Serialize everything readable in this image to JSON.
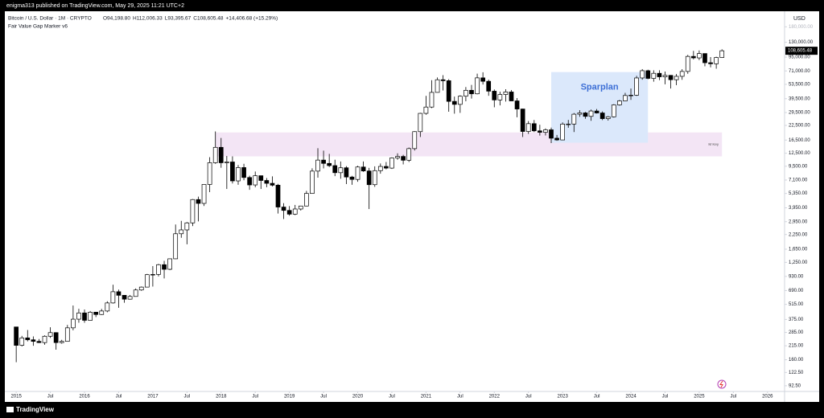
{
  "header": {
    "publisher": "enigma313 published on TradingView.com, May 29, 2025 11:21 UTC+2"
  },
  "footer": "TradingView",
  "chart_data": {
    "type": "candlestick",
    "symbol": "Bitcoin / U.S. Dollar · 1M · CRYPTO",
    "ohlc": [
      "O94,198.80",
      "H112,006.33",
      "L93,395.67",
      "C108,605.48",
      "+14,406.68 (+15.29%)"
    ],
    "indicator": "Fair Value Gap Marker v6",
    "y_axis_label": "USD",
    "log_scale": true,
    "grid": false,
    "up_color": "#ffffff",
    "down_color": "#000000",
    "x": [
      "2015-01",
      "2015-02",
      "2015-03",
      "2015-04",
      "2015-05",
      "2015-06",
      "2015-07",
      "2015-08",
      "2015-09",
      "2015-10",
      "2015-11",
      "2015-12",
      "2016-01",
      "2016-02",
      "2016-03",
      "2016-04",
      "2016-05",
      "2016-06",
      "2016-07",
      "2016-08",
      "2016-09",
      "2016-10",
      "2016-11",
      "2016-12",
      "2017-01",
      "2017-02",
      "2017-03",
      "2017-04",
      "2017-05",
      "2017-06",
      "2017-07",
      "2017-08",
      "2017-09",
      "2017-10",
      "2017-11",
      "2017-12",
      "2018-01",
      "2018-02",
      "2018-03",
      "2018-04",
      "2018-05",
      "2018-06",
      "2018-07",
      "2018-08",
      "2018-09",
      "2018-10",
      "2018-11",
      "2018-12",
      "2019-01",
      "2019-02",
      "2019-03",
      "2019-04",
      "2019-05",
      "2019-06",
      "2019-07",
      "2019-08",
      "2019-09",
      "2019-10",
      "2019-11",
      "2019-12",
      "2020-01",
      "2020-02",
      "2020-03",
      "2020-04",
      "2020-05",
      "2020-06",
      "2020-07",
      "2020-08",
      "2020-09",
      "2020-10",
      "2020-11",
      "2020-12",
      "2021-01",
      "2021-02",
      "2021-03",
      "2021-04",
      "2021-05",
      "2021-06",
      "2021-07",
      "2021-08",
      "2021-09",
      "2021-10",
      "2021-11",
      "2021-12",
      "2022-01",
      "2022-02",
      "2022-03",
      "2022-04",
      "2022-05",
      "2022-06",
      "2022-07",
      "2022-08",
      "2022-09",
      "2022-10",
      "2022-11",
      "2022-12",
      "2023-01",
      "2023-02",
      "2023-03",
      "2023-04",
      "2023-05",
      "2023-06",
      "2023-07",
      "2023-08",
      "2023-09",
      "2023-10",
      "2023-11",
      "2023-12",
      "2024-01",
      "2024-02",
      "2024-03",
      "2024-04",
      "2024-05",
      "2024-06",
      "2024-07",
      "2024-08",
      "2024-09",
      "2024-10",
      "2024-11",
      "2024-12",
      "2025-01",
      "2025-02",
      "2025-03",
      "2025-04",
      "2025-05"
    ],
    "open": [
      320,
      217,
      254,
      244,
      236,
      230,
      263,
      284,
      230,
      236,
      314,
      377,
      430,
      368,
      437,
      416,
      448,
      531,
      673,
      624,
      575,
      609,
      698,
      742,
      964,
      970,
      1190,
      1080,
      1348,
      2286,
      2480,
      2875,
      4703,
      4338,
      6468,
      10233,
      14156,
      10221,
      10397,
      6973,
      9240,
      7494,
      6404,
      7780,
      7037,
      6625,
      6371,
      4017,
      3742,
      3457,
      3854,
      4105,
      5350,
      8574,
      10817,
      10085,
      9630,
      8293,
      9199,
      7569,
      7193,
      9350,
      8599,
      6438,
      8658,
      9461,
      9137,
      11323,
      11681,
      10784,
      13781,
      19713,
      28990,
      33114,
      45137,
      58918,
      57750,
      37332,
      35041,
      41626,
      47167,
      43790,
      61318,
      57005,
      46306,
      38483,
      43194,
      45538,
      37714,
      31792,
      19785,
      23336,
      20050,
      19431,
      20495,
      17168,
      16548,
      23139,
      23147,
      28478,
      29268,
      27220,
      30477,
      29230,
      25941,
      26963,
      34668,
      37713,
      42265,
      42582,
      61198,
      71333,
      60637,
      67491,
      62678,
      64620,
      58970,
      63329,
      70215,
      96449,
      93430,
      102429,
      84374,
      82548,
      94198.8
    ],
    "high": [
      320,
      265,
      300,
      262,
      248,
      268,
      318,
      286,
      244,
      334,
      503,
      469,
      463,
      448,
      440,
      468,
      550,
      780,
      704,
      628,
      628,
      721,
      751,
      980,
      1155,
      1212,
      1290,
      1350,
      2780,
      3000,
      2930,
      4750,
      5000,
      6470,
      11500,
      19800,
      17250,
      11800,
      11700,
      9750,
      10000,
      7780,
      8500,
      7780,
      7410,
      7680,
      6550,
      4360,
      4100,
      4200,
      4130,
      5650,
      9100,
      13900,
      13200,
      12330,
      10900,
      10500,
      9530,
      7760,
      9580,
      10500,
      9180,
      9480,
      10070,
      10390,
      11450,
      12480,
      12090,
      14100,
      19900,
      29300,
      41950,
      58350,
      61800,
      64900,
      59600,
      41300,
      42400,
      50500,
      52900,
      67000,
      69000,
      59100,
      47990,
      45800,
      48200,
      47450,
      40000,
      31950,
      24650,
      25200,
      22800,
      21100,
      21480,
      18400,
      23950,
      25250,
      29200,
      31000,
      29850,
      31450,
      31800,
      30200,
      27450,
      35200,
      38450,
      44700,
      48950,
      64000,
      73800,
      72800,
      71950,
      71950,
      70000,
      65100,
      66500,
      73600,
      99600,
      108350,
      109350,
      102500,
      95000,
      95750,
      112006.33
    ],
    "low": [
      152,
      212,
      236,
      215,
      228,
      220,
      254,
      198,
      225,
      236,
      298,
      350,
      350,
      368,
      394,
      412,
      436,
      524,
      480,
      533,
      570,
      606,
      685,
      740,
      750,
      930,
      890,
      1060,
      1340,
      2100,
      1830,
      2690,
      2970,
      4110,
      5500,
      10000,
      9200,
      5880,
      6600,
      6430,
      7060,
      5780,
      6100,
      5880,
      6100,
      6200,
      3500,
      3120,
      3350,
      3390,
      3730,
      4080,
      5330,
      7470,
      9080,
      9330,
      7710,
      7300,
      6520,
      6430,
      6850,
      8450,
      3850,
      6150,
      8120,
      8900,
      8980,
      10900,
      9880,
      10390,
      13240,
      17600,
      28130,
      32400,
      45000,
      47000,
      30000,
      28800,
      29300,
      37400,
      39600,
      43300,
      53250,
      42000,
      32950,
      34300,
      37200,
      37700,
      26700,
      17600,
      18800,
      19550,
      18150,
      18200,
      15480,
      16270,
      16500,
      21400,
      19550,
      26950,
      25850,
      24800,
      28900,
      25150,
      24900,
      26550,
      34100,
      37600,
      38500,
      41900,
      59000,
      59600,
      56550,
      58450,
      53500,
      49000,
      52550,
      58850,
      66800,
      90500,
      89200,
      78200,
      76600,
      74400,
      93395.67
    ],
    "close": [
      217,
      254,
      244,
      236,
      230,
      263,
      284,
      230,
      236,
      314,
      377,
      430,
      368,
      437,
      416,
      448,
      531,
      673,
      624,
      575,
      609,
      698,
      742,
      964,
      970,
      1190,
      1080,
      1348,
      2286,
      2480,
      2875,
      4703,
      4338,
      6468,
      10233,
      14156,
      10221,
      10397,
      6973,
      9240,
      7494,
      6404,
      7780,
      7037,
      6625,
      6371,
      4017,
      3742,
      3457,
      3854,
      4105,
      5350,
      8574,
      10817,
      10085,
      9630,
      8293,
      9199,
      7569,
      7193,
      9350,
      8599,
      6438,
      8658,
      9461,
      9137,
      11323,
      11681,
      10784,
      13781,
      19713,
      28990,
      33114,
      45137,
      58918,
      57750,
      37332,
      35041,
      41626,
      47167,
      43790,
      61318,
      57005,
      46306,
      38483,
      43194,
      45538,
      37714,
      31792,
      19785,
      23336,
      20050,
      19431,
      20495,
      17168,
      16548,
      23139,
      23147,
      28478,
      29268,
      27220,
      30477,
      29230,
      25941,
      26963,
      34668,
      37713,
      42265,
      42582,
      61198,
      71333,
      60637,
      67491,
      62678,
      64620,
      58970,
      63329,
      70215,
      96449,
      93430,
      102429,
      84374,
      82548,
      94198.8,
      108605.48
    ],
    "last_label": "108,605.48",
    "xlim": [
      "2014-11",
      "2026-04"
    ],
    "xticks": [
      {
        "value": "2015-01",
        "label": "2015"
      },
      {
        "value": "2015-07",
        "label": "Jul"
      },
      {
        "value": "2016-01",
        "label": "2016"
      },
      {
        "value": "2016-07",
        "label": "Jul"
      },
      {
        "value": "2017-01",
        "label": "2017"
      },
      {
        "value": "2017-07",
        "label": "Jul"
      },
      {
        "value": "2018-01",
        "label": "2018"
      },
      {
        "value": "2018-07",
        "label": "Jul"
      },
      {
        "value": "2019-01",
        "label": "2019"
      },
      {
        "value": "2019-07",
        "label": "Jul"
      },
      {
        "value": "2020-01",
        "label": "2020"
      },
      {
        "value": "2020-07",
        "label": "Jul"
      },
      {
        "value": "2021-01",
        "label": "2021"
      },
      {
        "value": "2021-07",
        "label": "Jul"
      },
      {
        "value": "2022-01",
        "label": "2022"
      },
      {
        "value": "2022-07",
        "label": "Jul"
      },
      {
        "value": "2023-01",
        "label": "2023"
      },
      {
        "value": "2023-07",
        "label": "Jul"
      },
      {
        "value": "2024-01",
        "label": "2024"
      },
      {
        "value": "2024-07",
        "label": "Jul"
      },
      {
        "value": "2025-01",
        "label": "2025"
      },
      {
        "value": "2025-07",
        "label": "Jul"
      },
      {
        "value": "2026-01",
        "label": "2026"
      }
    ],
    "ylim": [
      82,
      250000
    ],
    "yticks": [
      {
        "value": 180000,
        "label": "180,000.00"
      },
      {
        "value": 130000,
        "label": "130,000.00"
      },
      {
        "value": 95000,
        "label": "95,000.00"
      },
      {
        "value": 71000,
        "label": "71,000.00"
      },
      {
        "value": 53500,
        "label": "53,500.00"
      },
      {
        "value": 39500,
        "label": "39,500.00"
      },
      {
        "value": 29500,
        "label": "29,500.00"
      },
      {
        "value": 22500,
        "label": "22,500.00"
      },
      {
        "value": 16500,
        "label": "16,500.00"
      },
      {
        "value": 12500,
        "label": "12,500.00"
      },
      {
        "value": 9500,
        "label": "9,500.00"
      },
      {
        "value": 7100,
        "label": "7,100.00"
      },
      {
        "value": 5350,
        "label": "5,350.00"
      },
      {
        "value": 3950,
        "label": "3,950.00"
      },
      {
        "value": 2950,
        "label": "2,950.00"
      },
      {
        "value": 2250,
        "label": "2,250.00"
      },
      {
        "value": 1650,
        "label": "1,650.00"
      },
      {
        "value": 1250,
        "label": "1,250.00"
      },
      {
        "value": 930,
        "label": "930.00"
      },
      {
        "value": 690,
        "label": "690.00"
      },
      {
        "value": 515,
        "label": "515.00"
      },
      {
        "value": 375,
        "label": "375.00"
      },
      {
        "value": 285,
        "label": "285.00"
      },
      {
        "value": 215,
        "label": "215.00"
      },
      {
        "value": 160,
        "label": "160.00"
      },
      {
        "value": 122.5,
        "label": "122.50"
      },
      {
        "value": 92.5,
        "label": "92.50"
      }
    ],
    "zones": [
      {
        "label": "M Key",
        "x": [
          "2017-12",
          "2025-05"
        ],
        "price": [
          11700,
          19400
        ],
        "color": "#f3e5f5"
      },
      {
        "label": "Sparplan",
        "x": [
          "2022-11",
          "2024-04"
        ],
        "price": [
          15600,
          69300
        ],
        "color": "#dbe8fb"
      }
    ]
  }
}
